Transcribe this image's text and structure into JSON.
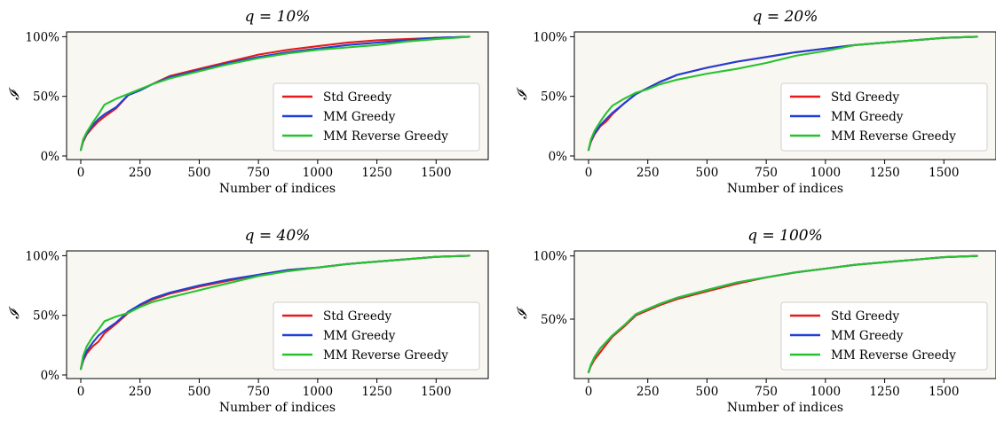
{
  "chart_data": [
    {
      "type": "line",
      "title": "q = 10%",
      "xlabel": "Number of indices",
      "ylabel": "𝓘",
      "xticks": [
        0,
        250,
        500,
        750,
        1000,
        1250,
        1500
      ],
      "xlim": [
        -60,
        1720
      ],
      "yticks": [
        0,
        50,
        100
      ],
      "ytick_labels": [
        "0%",
        "50%",
        "100%"
      ],
      "ylim": [
        -3,
        104
      ],
      "legend": "lower-right",
      "series": [
        {
          "name": "Std Greedy",
          "color": "#e41a1c",
          "x": [
            0,
            10,
            25,
            50,
            75,
            100,
            150,
            200,
            250,
            300,
            375,
            500,
            625,
            750,
            875,
            1000,
            1125,
            1250,
            1375,
            1500,
            1640
          ],
          "y": [
            5,
            12,
            18,
            24,
            29,
            33,
            40,
            51,
            55,
            60,
            67,
            73,
            79,
            85,
            89,
            92,
            95,
            97,
            98,
            99,
            100
          ]
        },
        {
          "name": "MM Greedy",
          "color": "#1f3fd6",
          "x": [
            0,
            10,
            25,
            50,
            75,
            100,
            150,
            200,
            250,
            300,
            375,
            500,
            625,
            750,
            875,
            1000,
            1125,
            1250,
            1375,
            1500,
            1640
          ],
          "y": [
            5,
            13,
            19,
            26,
            31,
            35,
            41,
            51,
            55,
            60,
            66,
            72,
            78,
            83,
            87,
            90,
            93,
            95,
            97,
            99,
            100
          ]
        },
        {
          "name": "MM Reverse Greedy",
          "color": "#27c22e",
          "x": [
            0,
            10,
            25,
            50,
            75,
            100,
            150,
            200,
            250,
            300,
            375,
            500,
            625,
            750,
            875,
            1000,
            1125,
            1250,
            1375,
            1500,
            1640
          ],
          "y": [
            5,
            14,
            20,
            28,
            35,
            43,
            48,
            52,
            56,
            60,
            65,
            71,
            77,
            82,
            86,
            89,
            91,
            93,
            96,
            98,
            100
          ]
        }
      ]
    },
    {
      "type": "line",
      "title": "q = 20%",
      "xlabel": "Number of indices",
      "ylabel": "𝓘",
      "xticks": [
        0,
        250,
        500,
        750,
        1000,
        1250,
        1500
      ],
      "xlim": [
        -60,
        1720
      ],
      "yticks": [
        0,
        50,
        100
      ],
      "ytick_labels": [
        "0%",
        "50%",
        "100%"
      ],
      "ylim": [
        -3,
        104
      ],
      "legend": "lower-right",
      "series": [
        {
          "name": "Std Greedy",
          "color": "#e41a1c",
          "x": [
            0,
            10,
            25,
            50,
            75,
            100,
            150,
            200,
            250,
            300,
            375,
            500,
            625,
            750,
            875,
            1000,
            1125,
            1250,
            1375,
            1500,
            1640
          ],
          "y": [
            5,
            12,
            18,
            25,
            29,
            35,
            44,
            52,
            57,
            62,
            68,
            74,
            79,
            83,
            87,
            90,
            93,
            95,
            97,
            99,
            100
          ]
        },
        {
          "name": "MM Greedy",
          "color": "#1f3fd6",
          "x": [
            0,
            10,
            25,
            50,
            75,
            100,
            150,
            200,
            250,
            300,
            375,
            500,
            625,
            750,
            875,
            1000,
            1125,
            1250,
            1375,
            1500,
            1640
          ],
          "y": [
            5,
            13,
            19,
            26,
            31,
            36,
            44,
            52,
            57,
            62,
            68,
            74,
            79,
            83,
            87,
            90,
            93,
            95,
            97,
            99,
            100
          ]
        },
        {
          "name": "MM Reverse Greedy",
          "color": "#27c22e",
          "x": [
            0,
            10,
            25,
            50,
            75,
            100,
            150,
            200,
            250,
            300,
            375,
            500,
            625,
            750,
            875,
            1000,
            1125,
            1250,
            1375,
            1500,
            1640
          ],
          "y": [
            5,
            14,
            21,
            29,
            36,
            42,
            48,
            53,
            56,
            60,
            64,
            69,
            73,
            78,
            84,
            88,
            93,
            95,
            97,
            99,
            100
          ]
        }
      ]
    },
    {
      "type": "line",
      "title": "q = 40%",
      "xlabel": "Number of indices",
      "ylabel": "𝓘",
      "xticks": [
        0,
        250,
        500,
        750,
        1000,
        1250,
        1500
      ],
      "xlim": [
        -60,
        1720
      ],
      "yticks": [
        0,
        50,
        100
      ],
      "ytick_labels": [
        "0%",
        "50%",
        "100%"
      ],
      "ylim": [
        -3,
        104
      ],
      "legend": "lower-right",
      "series": [
        {
          "name": "Std Greedy",
          "color": "#e41a1c",
          "x": [
            0,
            10,
            25,
            50,
            75,
            100,
            150,
            200,
            250,
            300,
            375,
            500,
            625,
            750,
            875,
            1000,
            1125,
            1250,
            1375,
            1500,
            1640
          ],
          "y": [
            5,
            12,
            18,
            24,
            28,
            35,
            43,
            52,
            58,
            63,
            68,
            74,
            79,
            84,
            88,
            90,
            93,
            95,
            97,
            99,
            100
          ]
        },
        {
          "name": "MM Greedy",
          "color": "#1f3fd6",
          "x": [
            0,
            10,
            25,
            50,
            75,
            100,
            150,
            200,
            250,
            300,
            375,
            500,
            625,
            750,
            875,
            1000,
            1125,
            1250,
            1375,
            1500,
            1640
          ],
          "y": [
            5,
            13,
            20,
            27,
            33,
            37,
            44,
            53,
            59,
            64,
            69,
            75,
            80,
            84,
            88,
            90,
            93,
            95,
            97,
            99,
            100
          ]
        },
        {
          "name": "MM Reverse Greedy",
          "color": "#27c22e",
          "x": [
            0,
            10,
            25,
            50,
            75,
            100,
            150,
            200,
            250,
            300,
            375,
            500,
            625,
            750,
            875,
            1000,
            1125,
            1250,
            1375,
            1500,
            1640
          ],
          "y": [
            5,
            16,
            24,
            32,
            38,
            45,
            49,
            52,
            57,
            61,
            65,
            71,
            77,
            83,
            87,
            90,
            93,
            95,
            97,
            99,
            100
          ]
        }
      ]
    },
    {
      "type": "line",
      "title": "q = 100%",
      "xlabel": "Number of indices",
      "ylabel": "𝓘",
      "xticks": [
        0,
        250,
        500,
        750,
        1000,
        1250,
        1500
      ],
      "xlim": [
        -60,
        1720
      ],
      "yticks": [
        50,
        100
      ],
      "ytick_labels": [
        "50%",
        "100%"
      ],
      "ylim": [
        3,
        104
      ],
      "legend": "lower-right",
      "series": [
        {
          "name": "Std Greedy",
          "color": "#e41a1c",
          "x": [
            0,
            10,
            25,
            50,
            75,
            100,
            150,
            200,
            250,
            300,
            375,
            500,
            625,
            750,
            875,
            1000,
            1125,
            1250,
            1375,
            1500,
            1640
          ],
          "y": [
            8,
            13,
            18,
            24,
            30,
            36,
            44,
            53,
            57,
            61,
            66,
            72,
            78,
            83,
            87,
            90,
            93,
            95,
            97,
            99,
            100
          ]
        },
        {
          "name": "MM Greedy",
          "color": "#1f3fd6",
          "x": [
            0,
            10,
            25,
            50,
            75,
            100,
            150,
            200,
            250,
            300,
            375,
            500,
            625,
            750,
            875,
            1000,
            1125,
            1250,
            1375,
            1500,
            1640
          ],
          "y": [
            8,
            14,
            20,
            27,
            32,
            37,
            45,
            54,
            58,
            62,
            67,
            73,
            79,
            83,
            87,
            90,
            93,
            95,
            97,
            99,
            100
          ]
        },
        {
          "name": "MM Reverse Greedy",
          "color": "#27c22e",
          "x": [
            0,
            10,
            25,
            50,
            75,
            100,
            150,
            200,
            250,
            300,
            375,
            500,
            625,
            750,
            875,
            1000,
            1125,
            1250,
            1375,
            1500,
            1640
          ],
          "y": [
            8,
            14,
            20,
            27,
            32,
            37,
            45,
            54,
            58,
            62,
            67,
            73,
            79,
            83,
            87,
            90,
            93,
            95,
            97,
            99,
            100
          ]
        }
      ]
    }
  ]
}
